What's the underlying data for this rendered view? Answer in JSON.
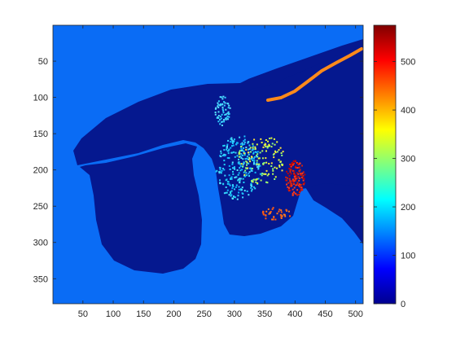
{
  "chart_data": {
    "type": "heatmap",
    "title": "",
    "xlabel": "",
    "ylabel": "",
    "xlim": [
      0.5,
      512.5
    ],
    "ylim": [
      0.5,
      384.5
    ],
    "y_direction": "reversed",
    "x_ticks": [
      50,
      100,
      150,
      200,
      250,
      300,
      350,
      400,
      450,
      500
    ],
    "y_ticks": [
      50,
      100,
      150,
      200,
      250,
      300,
      350
    ],
    "colormap": "jet",
    "colorbar": {
      "clim": [
        0,
        575
      ],
      "ticks": [
        0,
        100,
        200,
        300,
        400,
        500
      ],
      "placement": "right"
    },
    "background_value": 70,
    "regions": [
      {
        "name": "main body",
        "value": 15
      },
      {
        "name": "lower-left lobe",
        "value": 15
      },
      {
        "name": "speckle cluster (mid-high)",
        "value": 300
      },
      {
        "name": "cyan scatter",
        "value": 210
      },
      {
        "name": "red cluster",
        "value": 545
      },
      {
        "name": "orange curve",
        "value": 470
      }
    ],
    "grid": false
  }
}
